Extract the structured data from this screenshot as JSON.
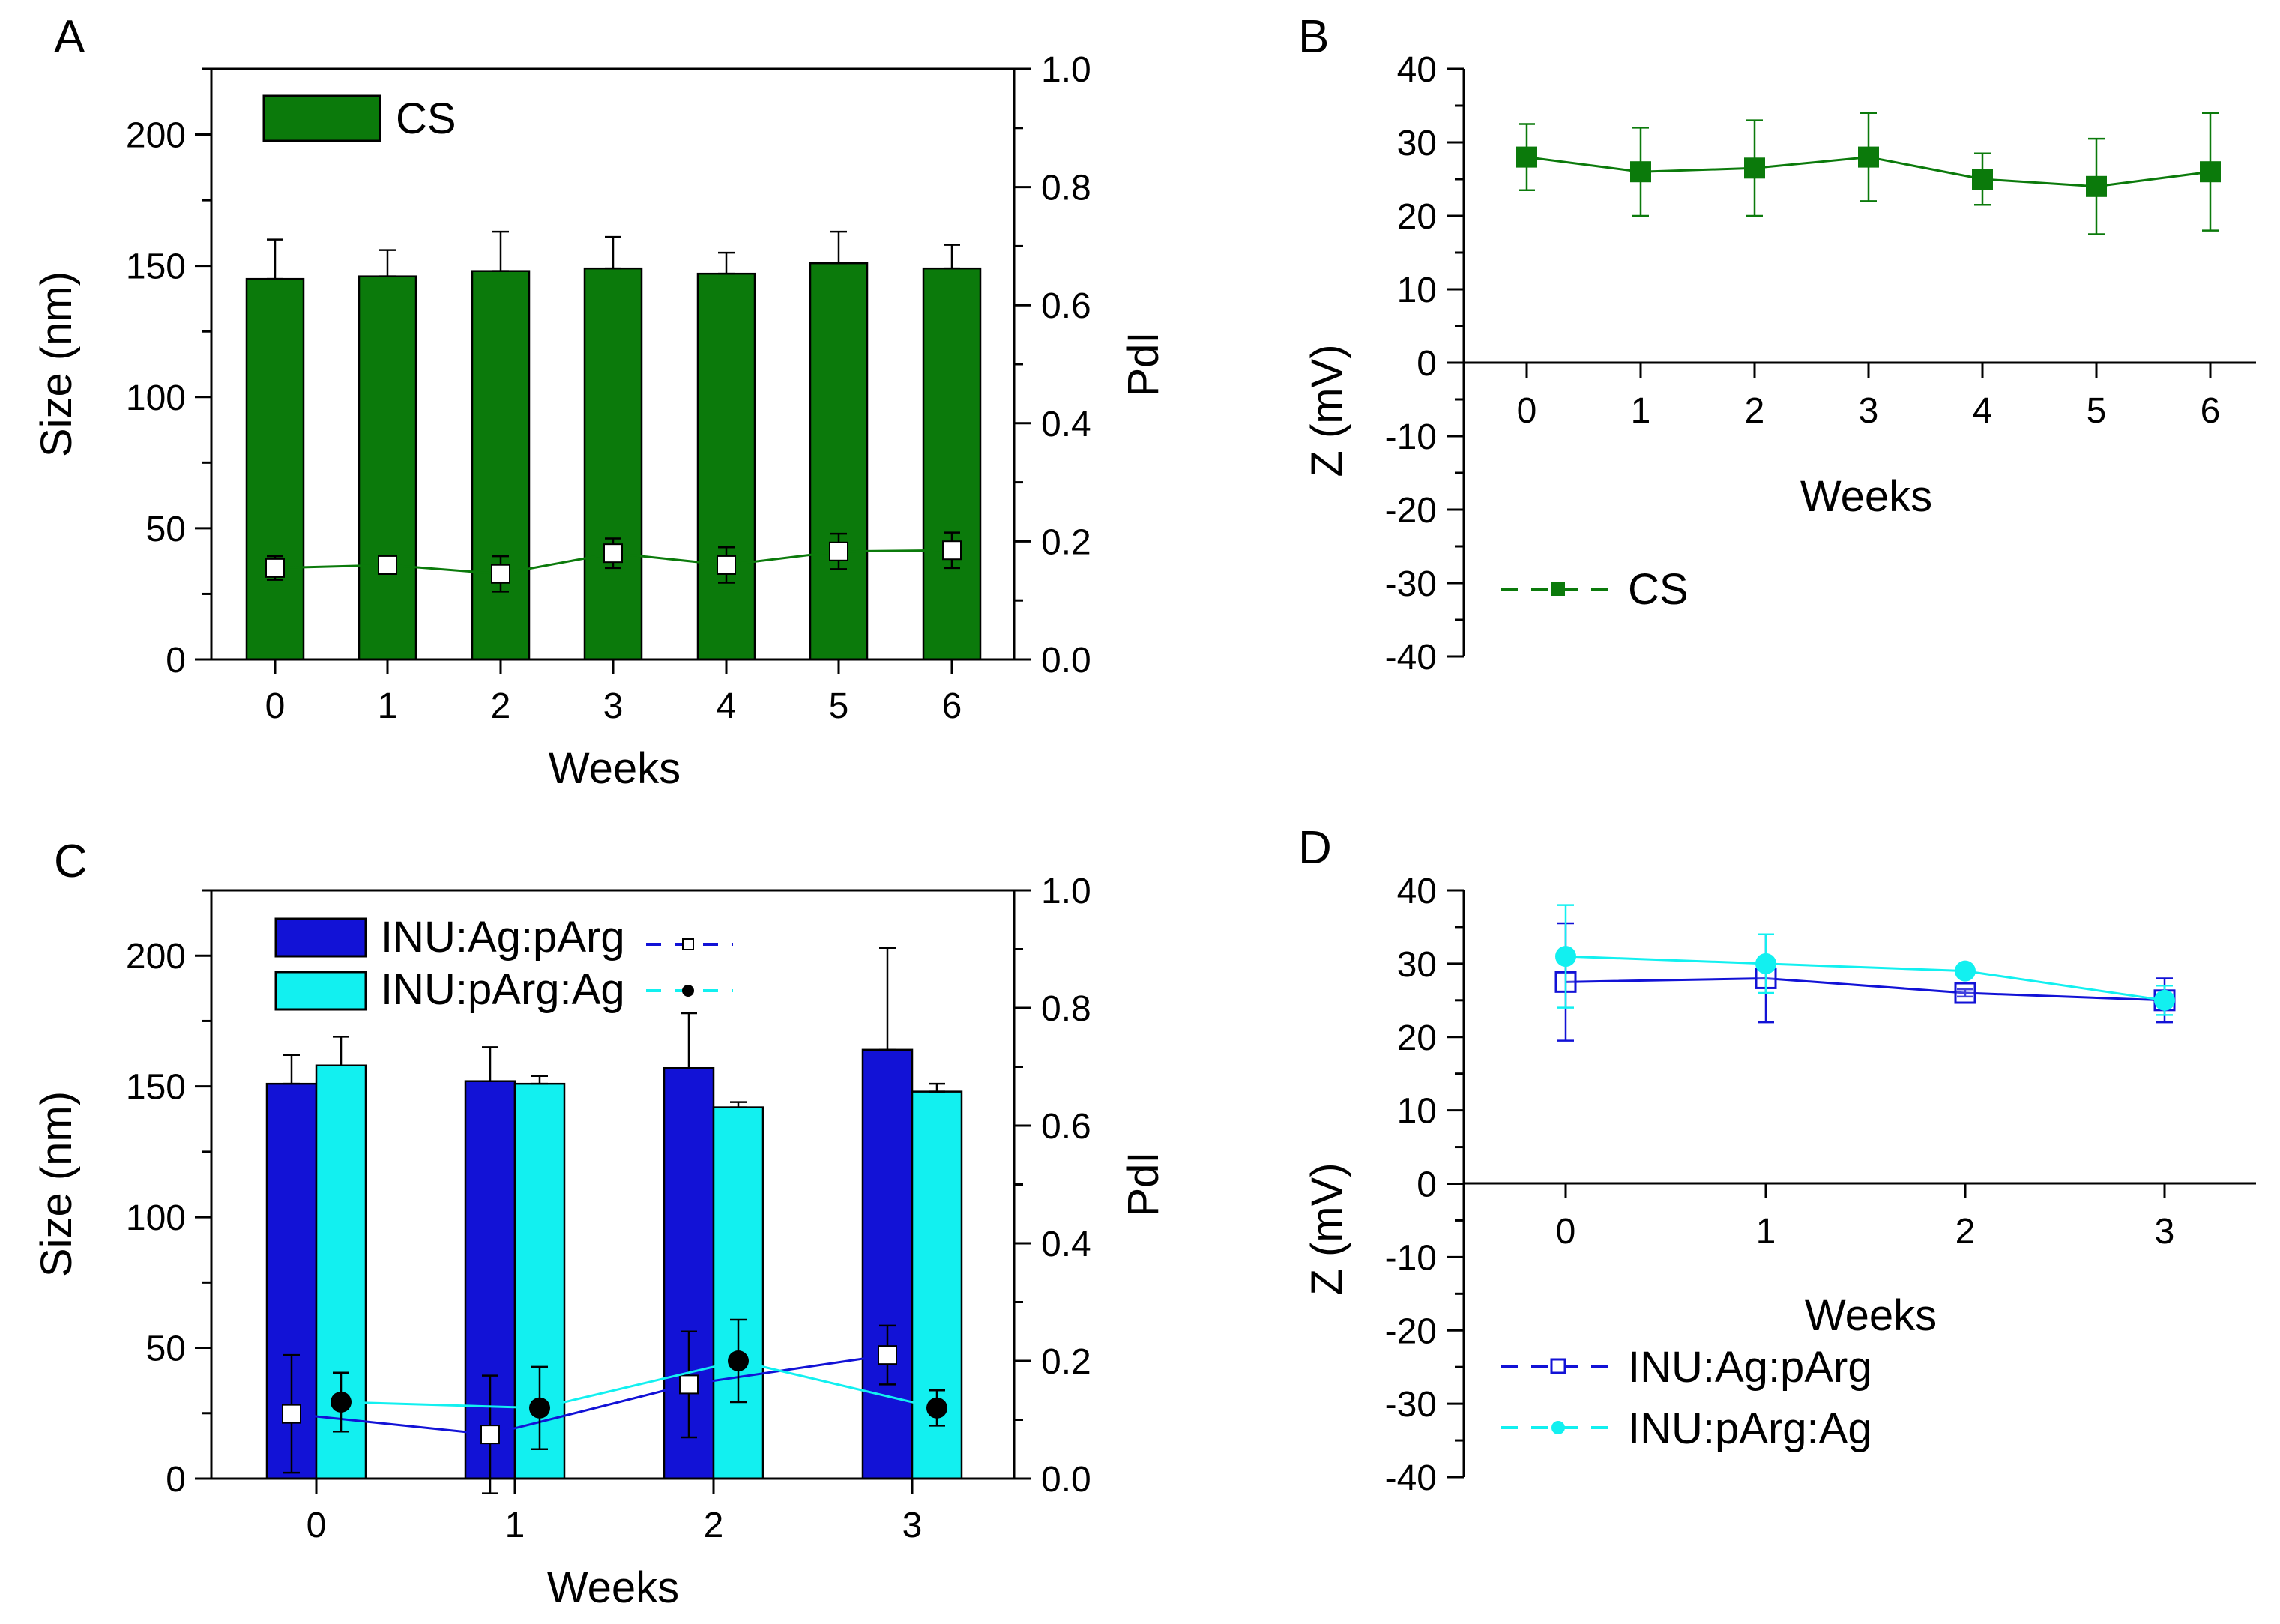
{
  "colors": {
    "cs": "#0b7a0b",
    "inu_ag_parg": "#1212d6",
    "inu_parg_ag": "#12f0f0",
    "axis": "#000000"
  },
  "chart_data": [
    {
      "panel": "A",
      "type": "bar",
      "xlabel": "Weeks",
      "ylabel": "Size (nm)",
      "y2label": "PdI",
      "categories": [
        "0",
        "1",
        "2",
        "3",
        "4",
        "5",
        "6"
      ],
      "ylim": [
        0,
        225
      ],
      "yticks": [
        "0",
        "50",
        "100",
        "150",
        "200"
      ],
      "y2lim": [
        0,
        1.0
      ],
      "y2ticks": [
        "0.0",
        "0.2",
        "0.4",
        "0.6",
        "0.8",
        "1.0"
      ],
      "legend": "CS",
      "series": [
        {
          "name": "CS",
          "axis": "size",
          "values": [
            145,
            146,
            148,
            149,
            147,
            151,
            149
          ],
          "errors": [
            15,
            10,
            15,
            12,
            8,
            12,
            9
          ]
        }
      ],
      "pdi_series": [
        {
          "name": "CS",
          "values": [
            0.155,
            0.16,
            0.145,
            0.18,
            0.16,
            0.183,
            0.185
          ],
          "errors": [
            0.02,
            0.015,
            0.03,
            0.025,
            0.03,
            0.03,
            0.03
          ]
        }
      ]
    },
    {
      "panel": "B",
      "type": "line",
      "xlabel": "Weeks",
      "ylabel": "Z (mV)",
      "categories": [
        "0",
        "1",
        "2",
        "3",
        "4",
        "5",
        "6"
      ],
      "ylim": [
        -40,
        40
      ],
      "yticks": [
        "-40",
        "-30",
        "-20",
        "-10",
        "0",
        "10",
        "20",
        "30",
        "40"
      ],
      "series": [
        {
          "name": "CS",
          "values": [
            28,
            26,
            26.5,
            28,
            25,
            24,
            26
          ],
          "errors": [
            4.5,
            6,
            6.5,
            6,
            3.5,
            6.5,
            8
          ]
        }
      ],
      "legend": [
        "CS"
      ]
    },
    {
      "panel": "C",
      "type": "bar",
      "xlabel": "Weeks",
      "ylabel": "Size (nm)",
      "y2label": "PdI",
      "categories": [
        "0",
        "1",
        "2",
        "3"
      ],
      "ylim": [
        0,
        225
      ],
      "yticks": [
        "0",
        "50",
        "100",
        "150",
        "200"
      ],
      "y2lim": [
        0,
        1.0
      ],
      "y2ticks": [
        "0.0",
        "0.2",
        "0.4",
        "0.6",
        "0.8",
        "1.0"
      ],
      "series": [
        {
          "name": "INU:Ag:pArg",
          "values": [
            151,
            152,
            157,
            164
          ],
          "errors": [
            11,
            13,
            21,
            39
          ]
        },
        {
          "name": "INU:pArg:Ag",
          "values": [
            158,
            151,
            142,
            148
          ],
          "errors": [
            11,
            3,
            2,
            3
          ]
        }
      ],
      "pdi_series": [
        {
          "name": "INU:Ag:pArg",
          "values": [
            0.11,
            0.075,
            0.16,
            0.21
          ],
          "errors": [
            0.1,
            0.1,
            0.09,
            0.05
          ]
        },
        {
          "name": "INU:pArg:Ag",
          "values": [
            0.13,
            0.12,
            0.2,
            0.12
          ],
          "errors": [
            0.05,
            0.07,
            0.07,
            0.03
          ]
        }
      ],
      "legend": [
        "INU:Ag:pArg",
        "INU:pArg:Ag"
      ]
    },
    {
      "panel": "D",
      "type": "line",
      "xlabel": "Weeks",
      "ylabel": "Z (mV)",
      "categories": [
        "0",
        "1",
        "2",
        "3"
      ],
      "ylim": [
        -40,
        40
      ],
      "yticks": [
        "-40",
        "-30",
        "-20",
        "-10",
        "0",
        "10",
        "20",
        "30",
        "40"
      ],
      "series": [
        {
          "name": "INU:Ag:pArg",
          "values": [
            27.5,
            28,
            26,
            25
          ],
          "errors": [
            8,
            6,
            0.5,
            3
          ]
        },
        {
          "name": "INU:pArg:Ag",
          "values": [
            31,
            30,
            29,
            25
          ],
          "errors": [
            7,
            4,
            0.5,
            2
          ]
        }
      ],
      "legend": [
        "INU:Ag:pArg",
        "INU:pArg:Ag"
      ]
    }
  ]
}
